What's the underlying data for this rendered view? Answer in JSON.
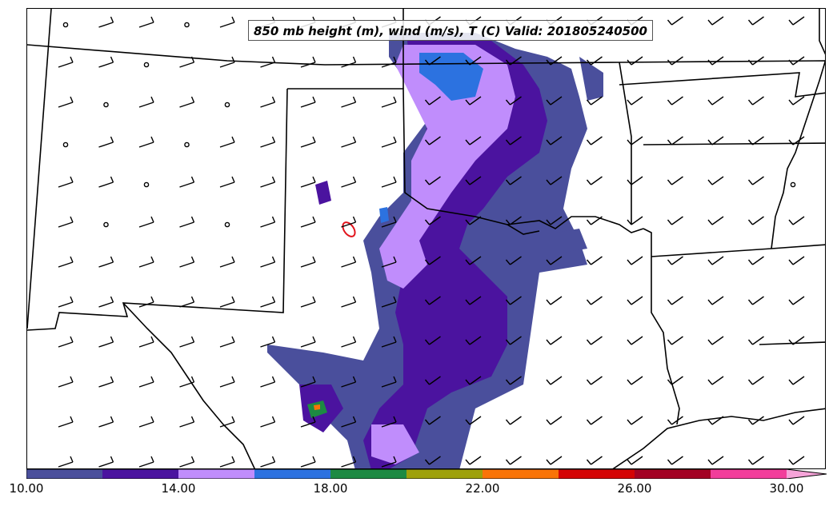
{
  "map": {
    "title": "850 mb height (m), wind (m/s), T (C) Valid: 201805240500",
    "field_colors": {
      "band_10_12": "#4a4f9c",
      "band_12_14": "#4b139f",
      "band_14_16": "#c08dfc",
      "band_16_18": "#2c72e0",
      "band_18_20": "#1d8a43",
      "band_20_22": "#9ea10a",
      "band_22_24": "#f97407",
      "band_24_26": "#d40405",
      "band_26_28": "#a30224",
      "band_28_30": "#f23e9b",
      "band_over_30": "#f5a3d8"
    },
    "contour_color": "#e2131b",
    "border_color": "#000000",
    "wind_barb_color": "#000000"
  },
  "colorbar": {
    "tick_labels": [
      "10.00",
      "14.00",
      "18.00",
      "22.00",
      "26.00",
      "30.00"
    ],
    "tick_values": [
      10,
      14,
      18,
      22,
      26,
      30
    ],
    "range": [
      10,
      31
    ],
    "extend": "max"
  }
}
